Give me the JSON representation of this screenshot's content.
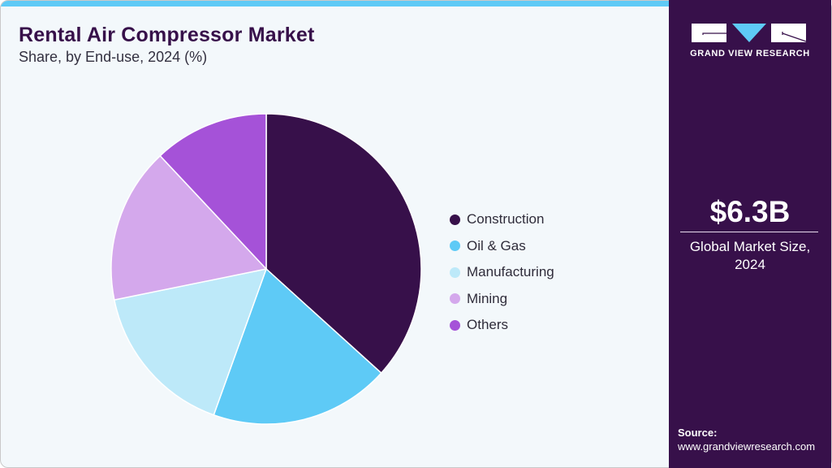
{
  "header": {
    "title": "Rental Air Compressor Market",
    "subtitle": "Share, by End-use, 2024 (%)"
  },
  "colors": {
    "accent_bar": "#5ecaf6",
    "panel": "#37104a",
    "background": "#f3f8fb"
  },
  "legend": [
    {
      "label": "Construction",
      "color": "#37104a"
    },
    {
      "label": "Oil & Gas",
      "color": "#5ecaf6"
    },
    {
      "label": "Manufacturing",
      "color": "#bde9f9"
    },
    {
      "label": "Mining",
      "color": "#d4a8ec"
    },
    {
      "label": "Others",
      "color": "#a552d8"
    }
  ],
  "sidebar": {
    "brand": "GRAND VIEW RESEARCH",
    "market_size": "$6.3B",
    "market_size_label_line1": "Global Market Size,",
    "market_size_label_line2": "2024",
    "source_label": "Source:",
    "source_url": "www.grandviewresearch.com"
  },
  "chart_data": {
    "type": "pie",
    "title": "Rental Air Compressor Market",
    "subtitle": "Share, by End-use, 2024 (%)",
    "categories": [
      "Construction",
      "Oil & Gas",
      "Manufacturing",
      "Mining",
      "Others"
    ],
    "values": [
      36.7,
      18.8,
      16.3,
      16.2,
      12.0
    ],
    "colors": [
      "#37104a",
      "#5ecaf6",
      "#bde9f9",
      "#d4a8ec",
      "#a552d8"
    ],
    "start_angle": "12 o'clock, clockwise",
    "legend_position": "right",
    "annotations": [
      "$6.3B Global Market Size, 2024"
    ]
  }
}
